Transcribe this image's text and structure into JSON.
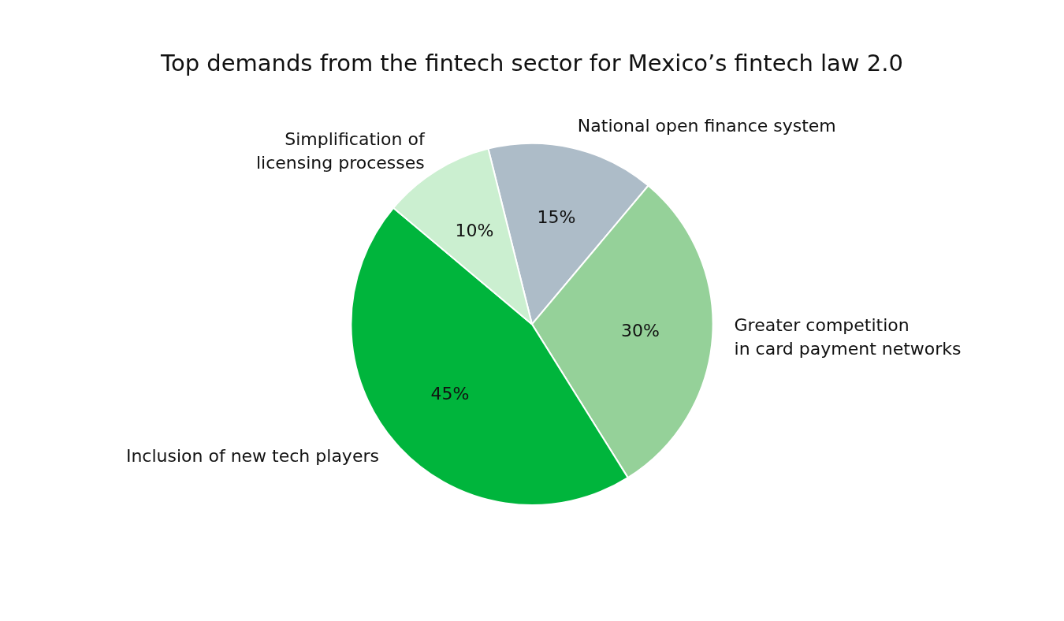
{
  "chart_data": {
    "type": "pie",
    "title": "Top demands from the fintech sector for Mexico’s fintech law 2.0",
    "categories": [
      "National open finance system",
      "Greater competition\nin card payment networks",
      "Inclusion of new tech players",
      "Simplification of\nlicensing processes"
    ],
    "values": [
      15,
      30,
      45,
      10
    ],
    "value_labels": [
      "15%",
      "30%",
      "45%",
      "10%"
    ],
    "colors": [
      "#adbcc8",
      "#95d199",
      "#00b53c",
      "#cbefd0"
    ],
    "legend": false
  }
}
